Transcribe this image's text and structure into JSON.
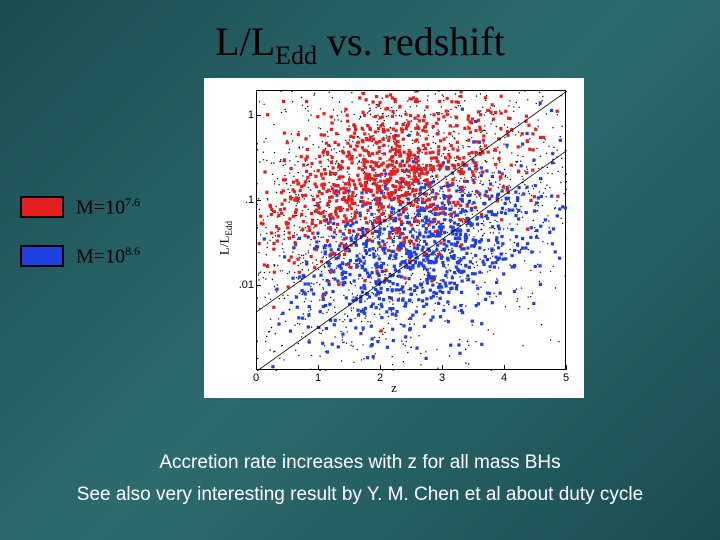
{
  "title": {
    "main": "L/L",
    "sub": "Edd",
    "rest": " vs. redshift"
  },
  "legend": [
    {
      "swatch_color": "#e62020",
      "label_base": "M=10",
      "label_exp": "7.6"
    },
    {
      "swatch_color": "#2040e0",
      "label_base": "M=10",
      "label_exp": "8.6"
    }
  ],
  "captions": {
    "line1": "Accretion rate increases with z for all mass BHs",
    "line2": "See also very interesting result by Y. M. Chen et al about duty cycle"
  },
  "chart": {
    "type": "scatter",
    "xlabel": "z",
    "ylabel_main": "L/L",
    "ylabel_sub": "Edd",
    "xlim": [
      0,
      5
    ],
    "ylim_log": [
      -3,
      0.3
    ],
    "yticks": [
      {
        "v": 1,
        "label": "1"
      },
      {
        "v": 0.1,
        "label": ".1"
      },
      {
        "v": 0.01,
        "label": ".01"
      }
    ],
    "xticks": [
      {
        "v": 0,
        "label": "0"
      },
      {
        "v": 1,
        "label": "1"
      },
      {
        "v": 2,
        "label": "2"
      },
      {
        "v": 3,
        "label": "3"
      },
      {
        "v": 4,
        "label": "4"
      },
      {
        "v": 5,
        "label": "5"
      }
    ],
    "diag_lines": [
      {
        "y0_log": -2.3,
        "y1_log": 0.3
      },
      {
        "y0_log": -3.0,
        "y1_log": -0.4
      }
    ],
    "series": {
      "red": {
        "color": "#e62020",
        "marker": "square",
        "size": 3.2,
        "n": 900,
        "z_center": 2.1,
        "z_spread": 1.0,
        "logy_center": -0.7,
        "logy_spread": 0.45
      },
      "blue": {
        "color": "#2040e0",
        "marker": "square",
        "size": 3.2,
        "n": 900,
        "z_center": 2.6,
        "z_spread": 1.0,
        "logy_center": -1.55,
        "logy_spread": 0.45
      },
      "bg": {
        "color": "#000000",
        "marker": "dot",
        "size": 0.7,
        "n": 2200,
        "z_center": 2.2,
        "z_spread": 1.6,
        "logy_center": -1.1,
        "logy_spread": 0.95
      }
    },
    "background_color": "#ffffff",
    "axis_color": "#000000"
  }
}
